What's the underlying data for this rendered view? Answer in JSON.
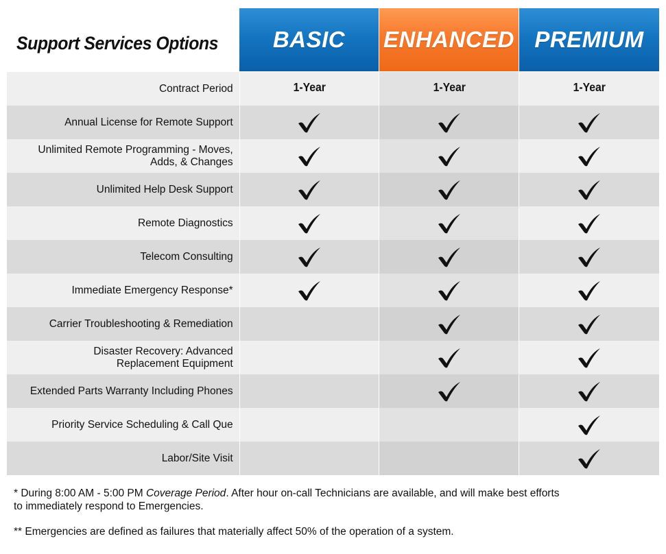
{
  "title": "Support Services Options",
  "plans": [
    {
      "name": "BASIC",
      "color": "#1475c2"
    },
    {
      "name": "ENHANCED",
      "color": "#f7792c"
    },
    {
      "name": "PREMIUM",
      "color": "#1475c2"
    }
  ],
  "rows": [
    {
      "label": "Contract Period",
      "values": [
        "1-Year",
        "1-Year",
        "1-Year"
      ]
    },
    {
      "label": "Annual License for Remote Support",
      "checks": [
        true,
        true,
        true
      ]
    },
    {
      "label": "Unlimited Remote Programming - Moves,\nAdds, & Changes",
      "checks": [
        true,
        true,
        true
      ]
    },
    {
      "label": "Unlimited Help Desk Support",
      "checks": [
        true,
        true,
        true
      ]
    },
    {
      "label": "Remote Diagnostics",
      "checks": [
        true,
        true,
        true
      ]
    },
    {
      "label": "Telecom Consulting",
      "checks": [
        true,
        true,
        true
      ]
    },
    {
      "label": "Immediate Emergency Response*",
      "checks": [
        true,
        true,
        true
      ]
    },
    {
      "label": "Carrier Troubleshooting & Remediation",
      "checks": [
        false,
        true,
        true
      ]
    },
    {
      "label": "Disaster Recovery: Advanced\nReplacement Equipment",
      "checks": [
        false,
        true,
        true
      ]
    },
    {
      "label": "Extended Parts Warranty Including Phones",
      "checks": [
        false,
        true,
        true
      ]
    },
    {
      "label": "Priority Service Scheduling & Call Que",
      "checks": [
        false,
        false,
        true
      ]
    },
    {
      "label": "Labor/Site Visit",
      "checks": [
        false,
        false,
        true
      ]
    }
  ],
  "notes": {
    "note1_prefix": "* During 8:00 AM - 5:00 PM ",
    "note1_italic": "Coverage Period",
    "note1_suffix": ".  After hour on-call Technicians are available, and will make best efforts to immediately respond to Emergencies.",
    "note2": "** Emergencies are defined as failures that materially affect 50% of the operation of a system."
  }
}
